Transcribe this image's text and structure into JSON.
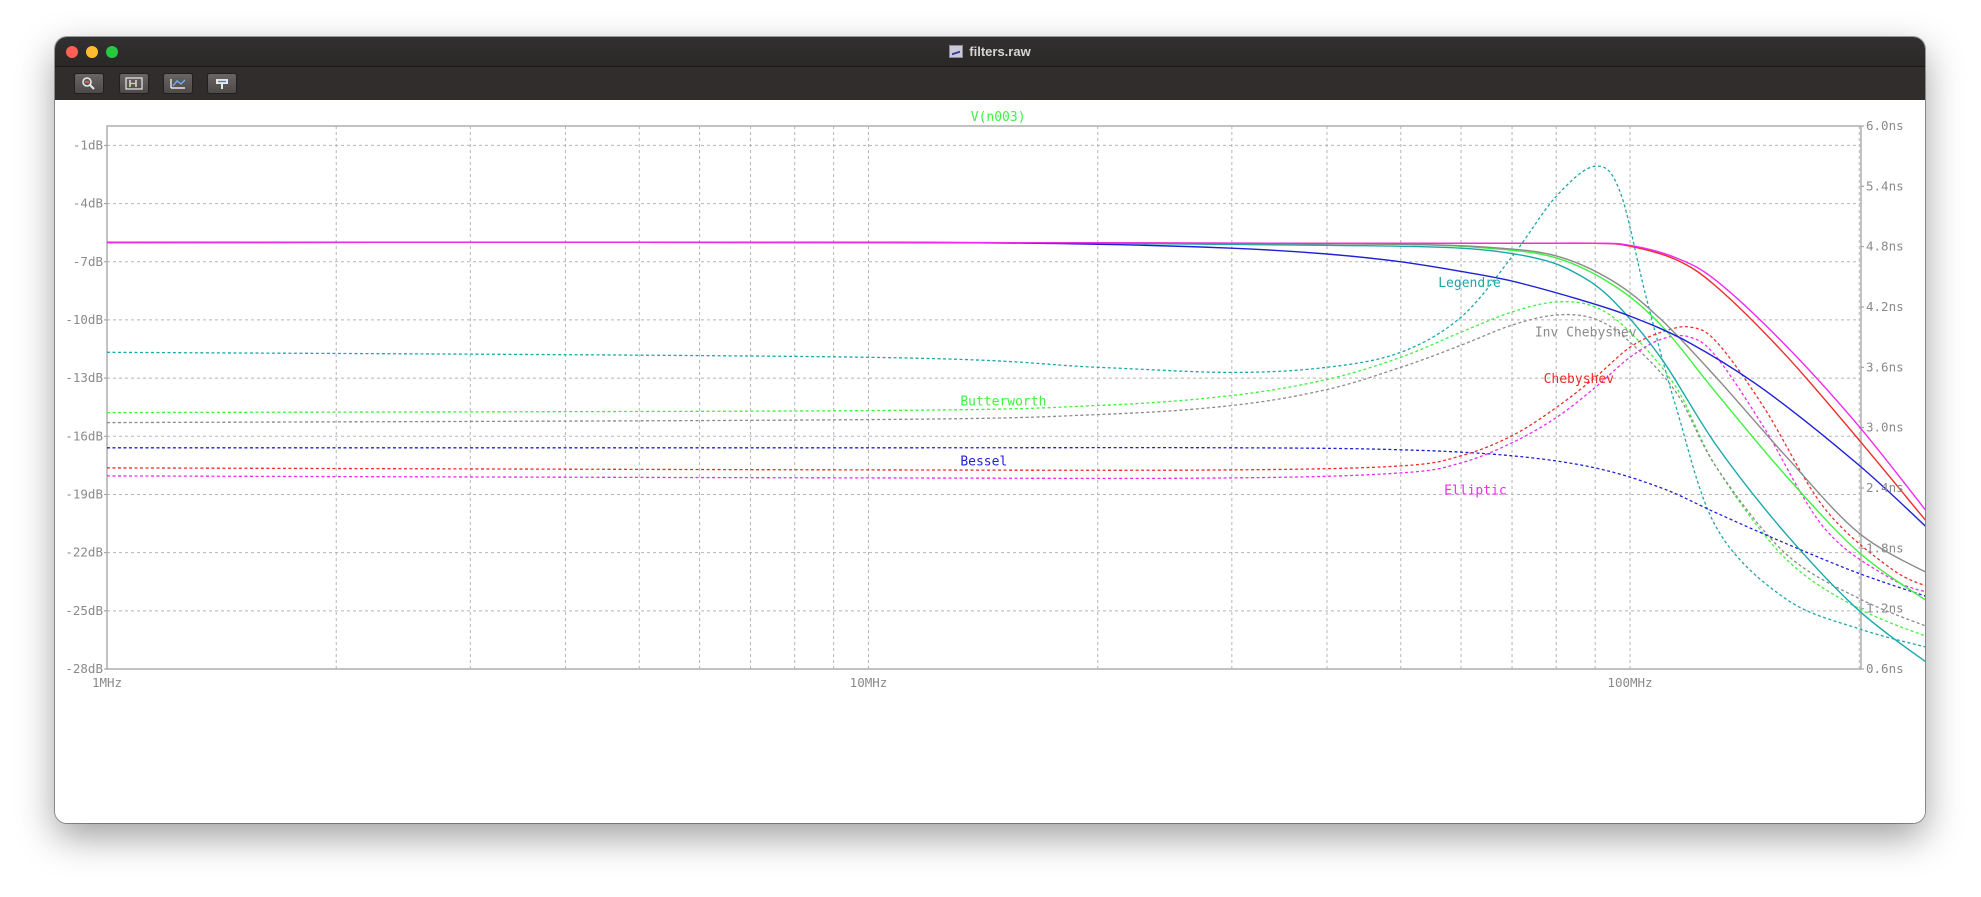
{
  "window": {
    "title": "filters.raw",
    "toolbar_buttons": [
      {
        "icon": "zoom-tool-icon"
      },
      {
        "icon": "pan-tool-icon"
      },
      {
        "icon": "autorange-icon"
      },
      {
        "icon": "probe-tool-icon"
      }
    ]
  },
  "chart_data": {
    "type": "line",
    "title": "V(n003)",
    "x_scale": "log",
    "xlim_hz": [
      1000000,
      251000000
    ],
    "x_ticks": [
      {
        "value": 1000000,
        "label": "1MHz"
      },
      {
        "value": 10000000,
        "label": "10MHz"
      },
      {
        "value": 100000000,
        "label": "100MHz"
      }
    ],
    "y_left": {
      "unit": "dB",
      "range": [
        -28,
        0
      ],
      "ticks": [
        {
          "value": -1,
          "label": "-1dB"
        },
        {
          "value": -4,
          "label": "-4dB"
        },
        {
          "value": -7,
          "label": "-7dB"
        },
        {
          "value": -10,
          "label": "-10dB"
        },
        {
          "value": -13,
          "label": "-13dB"
        },
        {
          "value": -16,
          "label": "-16dB"
        },
        {
          "value": -19,
          "label": "-19dB"
        },
        {
          "value": -22,
          "label": "-22dB"
        },
        {
          "value": -25,
          "label": "-25dB"
        },
        {
          "value": -28,
          "label": "-28dB"
        }
      ]
    },
    "y_right": {
      "unit": "ns",
      "range": [
        0.6,
        6.0
      ],
      "ticks": [
        {
          "value": 6.0,
          "label": "6.0ns"
        },
        {
          "value": 5.4,
          "label": "5.4ns"
        },
        {
          "value": 4.8,
          "label": "4.8ns"
        },
        {
          "value": 4.2,
          "label": "4.2ns"
        },
        {
          "value": 3.6,
          "label": "3.6ns"
        },
        {
          "value": 3.0,
          "label": "3.0ns"
        },
        {
          "value": 2.4,
          "label": "2.4ns"
        },
        {
          "value": 1.8,
          "label": "1.8ns"
        },
        {
          "value": 1.2,
          "label": "1.2ns"
        },
        {
          "value": 0.6,
          "label": "0.6ns"
        }
      ]
    },
    "grid": true,
    "series": [
      {
        "name": "Legendre",
        "color": "#1ba8a8",
        "magnitude_db": [
          [
            1,
            -6.0
          ],
          [
            10,
            -6.0
          ],
          [
            20,
            -6.05
          ],
          [
            40,
            -6.15
          ],
          [
            60,
            -6.3
          ],
          [
            75,
            -6.8
          ],
          [
            85,
            -7.6
          ],
          [
            95,
            -9.0
          ],
          [
            110,
            -12.0
          ],
          [
            130,
            -16.5
          ],
          [
            160,
            -21.0
          ],
          [
            200,
            -25.0
          ],
          [
            250,
            -27.9
          ]
        ],
        "group_delay_ns": [
          [
            1,
            3.75
          ],
          [
            10,
            3.7
          ],
          [
            20,
            3.6
          ],
          [
            30,
            3.55
          ],
          [
            40,
            3.6
          ],
          [
            50,
            3.75
          ],
          [
            60,
            4.1
          ],
          [
            70,
            4.7
          ],
          [
            80,
            5.3
          ],
          [
            90,
            5.6
          ],
          [
            97,
            5.35
          ],
          [
            105,
            4.3
          ],
          [
            115,
            3.2
          ],
          [
            130,
            2.0
          ],
          [
            160,
            1.3
          ],
          [
            200,
            1.0
          ],
          [
            250,
            0.8
          ]
        ]
      },
      {
        "name": "Butterworth",
        "color": "#3ef23e",
        "magnitude_db": [
          [
            1,
            -6.0
          ],
          [
            10,
            -6.0
          ],
          [
            30,
            -6.05
          ],
          [
            50,
            -6.1
          ],
          [
            65,
            -6.3
          ],
          [
            80,
            -6.8
          ],
          [
            95,
            -8.2
          ],
          [
            110,
            -10.3
          ],
          [
            130,
            -13.8
          ],
          [
            160,
            -18.0
          ],
          [
            200,
            -22.0
          ],
          [
            250,
            -24.7
          ]
        ],
        "group_delay_ns": [
          [
            1,
            3.15
          ],
          [
            10,
            3.17
          ],
          [
            20,
            3.22
          ],
          [
            30,
            3.32
          ],
          [
            40,
            3.48
          ],
          [
            50,
            3.7
          ],
          [
            60,
            3.95
          ],
          [
            70,
            4.15
          ],
          [
            80,
            4.25
          ],
          [
            90,
            4.2
          ],
          [
            100,
            3.95
          ],
          [
            115,
            3.4
          ],
          [
            130,
            2.6
          ],
          [
            160,
            1.7
          ],
          [
            200,
            1.2
          ],
          [
            250,
            0.9
          ]
        ]
      },
      {
        "name": "Inv Chebyshev",
        "color": "#8a8a8a",
        "magnitude_db": [
          [
            1,
            -6.0
          ],
          [
            10,
            -6.0
          ],
          [
            30,
            -6.05
          ],
          [
            50,
            -6.1
          ],
          [
            65,
            -6.25
          ],
          [
            80,
            -6.7
          ],
          [
            95,
            -8.0
          ],
          [
            110,
            -10.0
          ],
          [
            130,
            -13.0
          ],
          [
            160,
            -17.0
          ],
          [
            200,
            -21.0
          ],
          [
            250,
            -23.2
          ]
        ],
        "group_delay_ns": [
          [
            1,
            3.05
          ],
          [
            10,
            3.08
          ],
          [
            20,
            3.13
          ],
          [
            30,
            3.22
          ],
          [
            40,
            3.38
          ],
          [
            50,
            3.6
          ],
          [
            60,
            3.82
          ],
          [
            70,
            4.02
          ],
          [
            80,
            4.12
          ],
          [
            90,
            4.08
          ],
          [
            100,
            3.85
          ],
          [
            115,
            3.35
          ],
          [
            130,
            2.6
          ],
          [
            160,
            1.75
          ],
          [
            200,
            1.3
          ],
          [
            250,
            1.0
          ]
        ]
      },
      {
        "name": "Bessel",
        "color": "#1f1fd8",
        "magnitude_db": [
          [
            1,
            -6.0
          ],
          [
            10,
            -6.0
          ],
          [
            20,
            -6.1
          ],
          [
            30,
            -6.3
          ],
          [
            40,
            -6.6
          ],
          [
            50,
            -7.0
          ],
          [
            60,
            -7.5
          ],
          [
            70,
            -8.0
          ],
          [
            85,
            -8.9
          ],
          [
            100,
            -9.8
          ],
          [
            120,
            -11.2
          ],
          [
            150,
            -13.6
          ],
          [
            200,
            -17.5
          ],
          [
            250,
            -21.0
          ]
        ],
        "group_delay_ns": [
          [
            1,
            2.8
          ],
          [
            10,
            2.8
          ],
          [
            30,
            2.8
          ],
          [
            50,
            2.78
          ],
          [
            70,
            2.72
          ],
          [
            90,
            2.6
          ],
          [
            110,
            2.4
          ],
          [
            130,
            2.15
          ],
          [
            160,
            1.85
          ],
          [
            200,
            1.55
          ],
          [
            250,
            1.3
          ]
        ]
      },
      {
        "name": "Chebyshev",
        "color": "#f02a2a",
        "magnitude_db": [
          [
            1,
            -6.0
          ],
          [
            10,
            -6.0
          ],
          [
            40,
            -6.05
          ],
          [
            70,
            -6.05
          ],
          [
            90,
            -6.05
          ],
          [
            100,
            -6.2
          ],
          [
            115,
            -6.9
          ],
          [
            130,
            -8.3
          ],
          [
            160,
            -11.8
          ],
          [
            200,
            -16.2
          ],
          [
            250,
            -20.8
          ]
        ],
        "group_delay_ns": [
          [
            1,
            2.6
          ],
          [
            10,
            2.58
          ],
          [
            30,
            2.58
          ],
          [
            50,
            2.62
          ],
          [
            60,
            2.72
          ],
          [
            70,
            2.92
          ],
          [
            80,
            3.2
          ],
          [
            90,
            3.5
          ],
          [
            100,
            3.8
          ],
          [
            110,
            3.95
          ],
          [
            120,
            4.0
          ],
          [
            130,
            3.85
          ],
          [
            150,
            3.2
          ],
          [
            180,
            2.2
          ],
          [
            220,
            1.6
          ],
          [
            250,
            1.4
          ]
        ]
      },
      {
        "name": "Elliptic",
        "color": "#f02af0",
        "magnitude_db": [
          [
            1,
            -6.0
          ],
          [
            10,
            -6.0
          ],
          [
            40,
            -6.05
          ],
          [
            70,
            -6.05
          ],
          [
            90,
            -6.05
          ],
          [
            100,
            -6.15
          ],
          [
            115,
            -6.8
          ],
          [
            130,
            -8.0
          ],
          [
            160,
            -11.3
          ],
          [
            200,
            -15.5
          ],
          [
            250,
            -20.3
          ]
        ],
        "group_delay_ns": [
          [
            1,
            2.52
          ],
          [
            10,
            2.5
          ],
          [
            30,
            2.5
          ],
          [
            50,
            2.55
          ],
          [
            60,
            2.65
          ],
          [
            70,
            2.85
          ],
          [
            80,
            3.1
          ],
          [
            90,
            3.4
          ],
          [
            100,
            3.7
          ],
          [
            110,
            3.88
          ],
          [
            120,
            3.9
          ],
          [
            130,
            3.7
          ],
          [
            150,
            3.0
          ],
          [
            180,
            2.0
          ],
          [
            220,
            1.5
          ],
          [
            250,
            1.35
          ]
        ]
      }
    ],
    "labels": [
      {
        "text": "Legendre",
        "color": "#1ba8a8",
        "at_mhz": 56,
        "at_db": -8.1
      },
      {
        "text": "Butterworth",
        "color": "#3ef23e",
        "at_mhz": 13.2,
        "at_db": -14.2
      },
      {
        "text": "Inv Chebyshev",
        "color": "#8a8a8a",
        "at_mhz": 75,
        "at_db": -10.65
      },
      {
        "text": "Chebyshev",
        "color": "#f02a2a",
        "at_mhz": 77,
        "at_db": -13.05
      },
      {
        "text": "Bessel",
        "color": "#1f1fd8",
        "at_mhz": 13.2,
        "at_db": -17.3
      },
      {
        "text": "Elliptic",
        "color": "#f02af0",
        "at_mhz": 57,
        "at_db": -18.8
      }
    ]
  }
}
